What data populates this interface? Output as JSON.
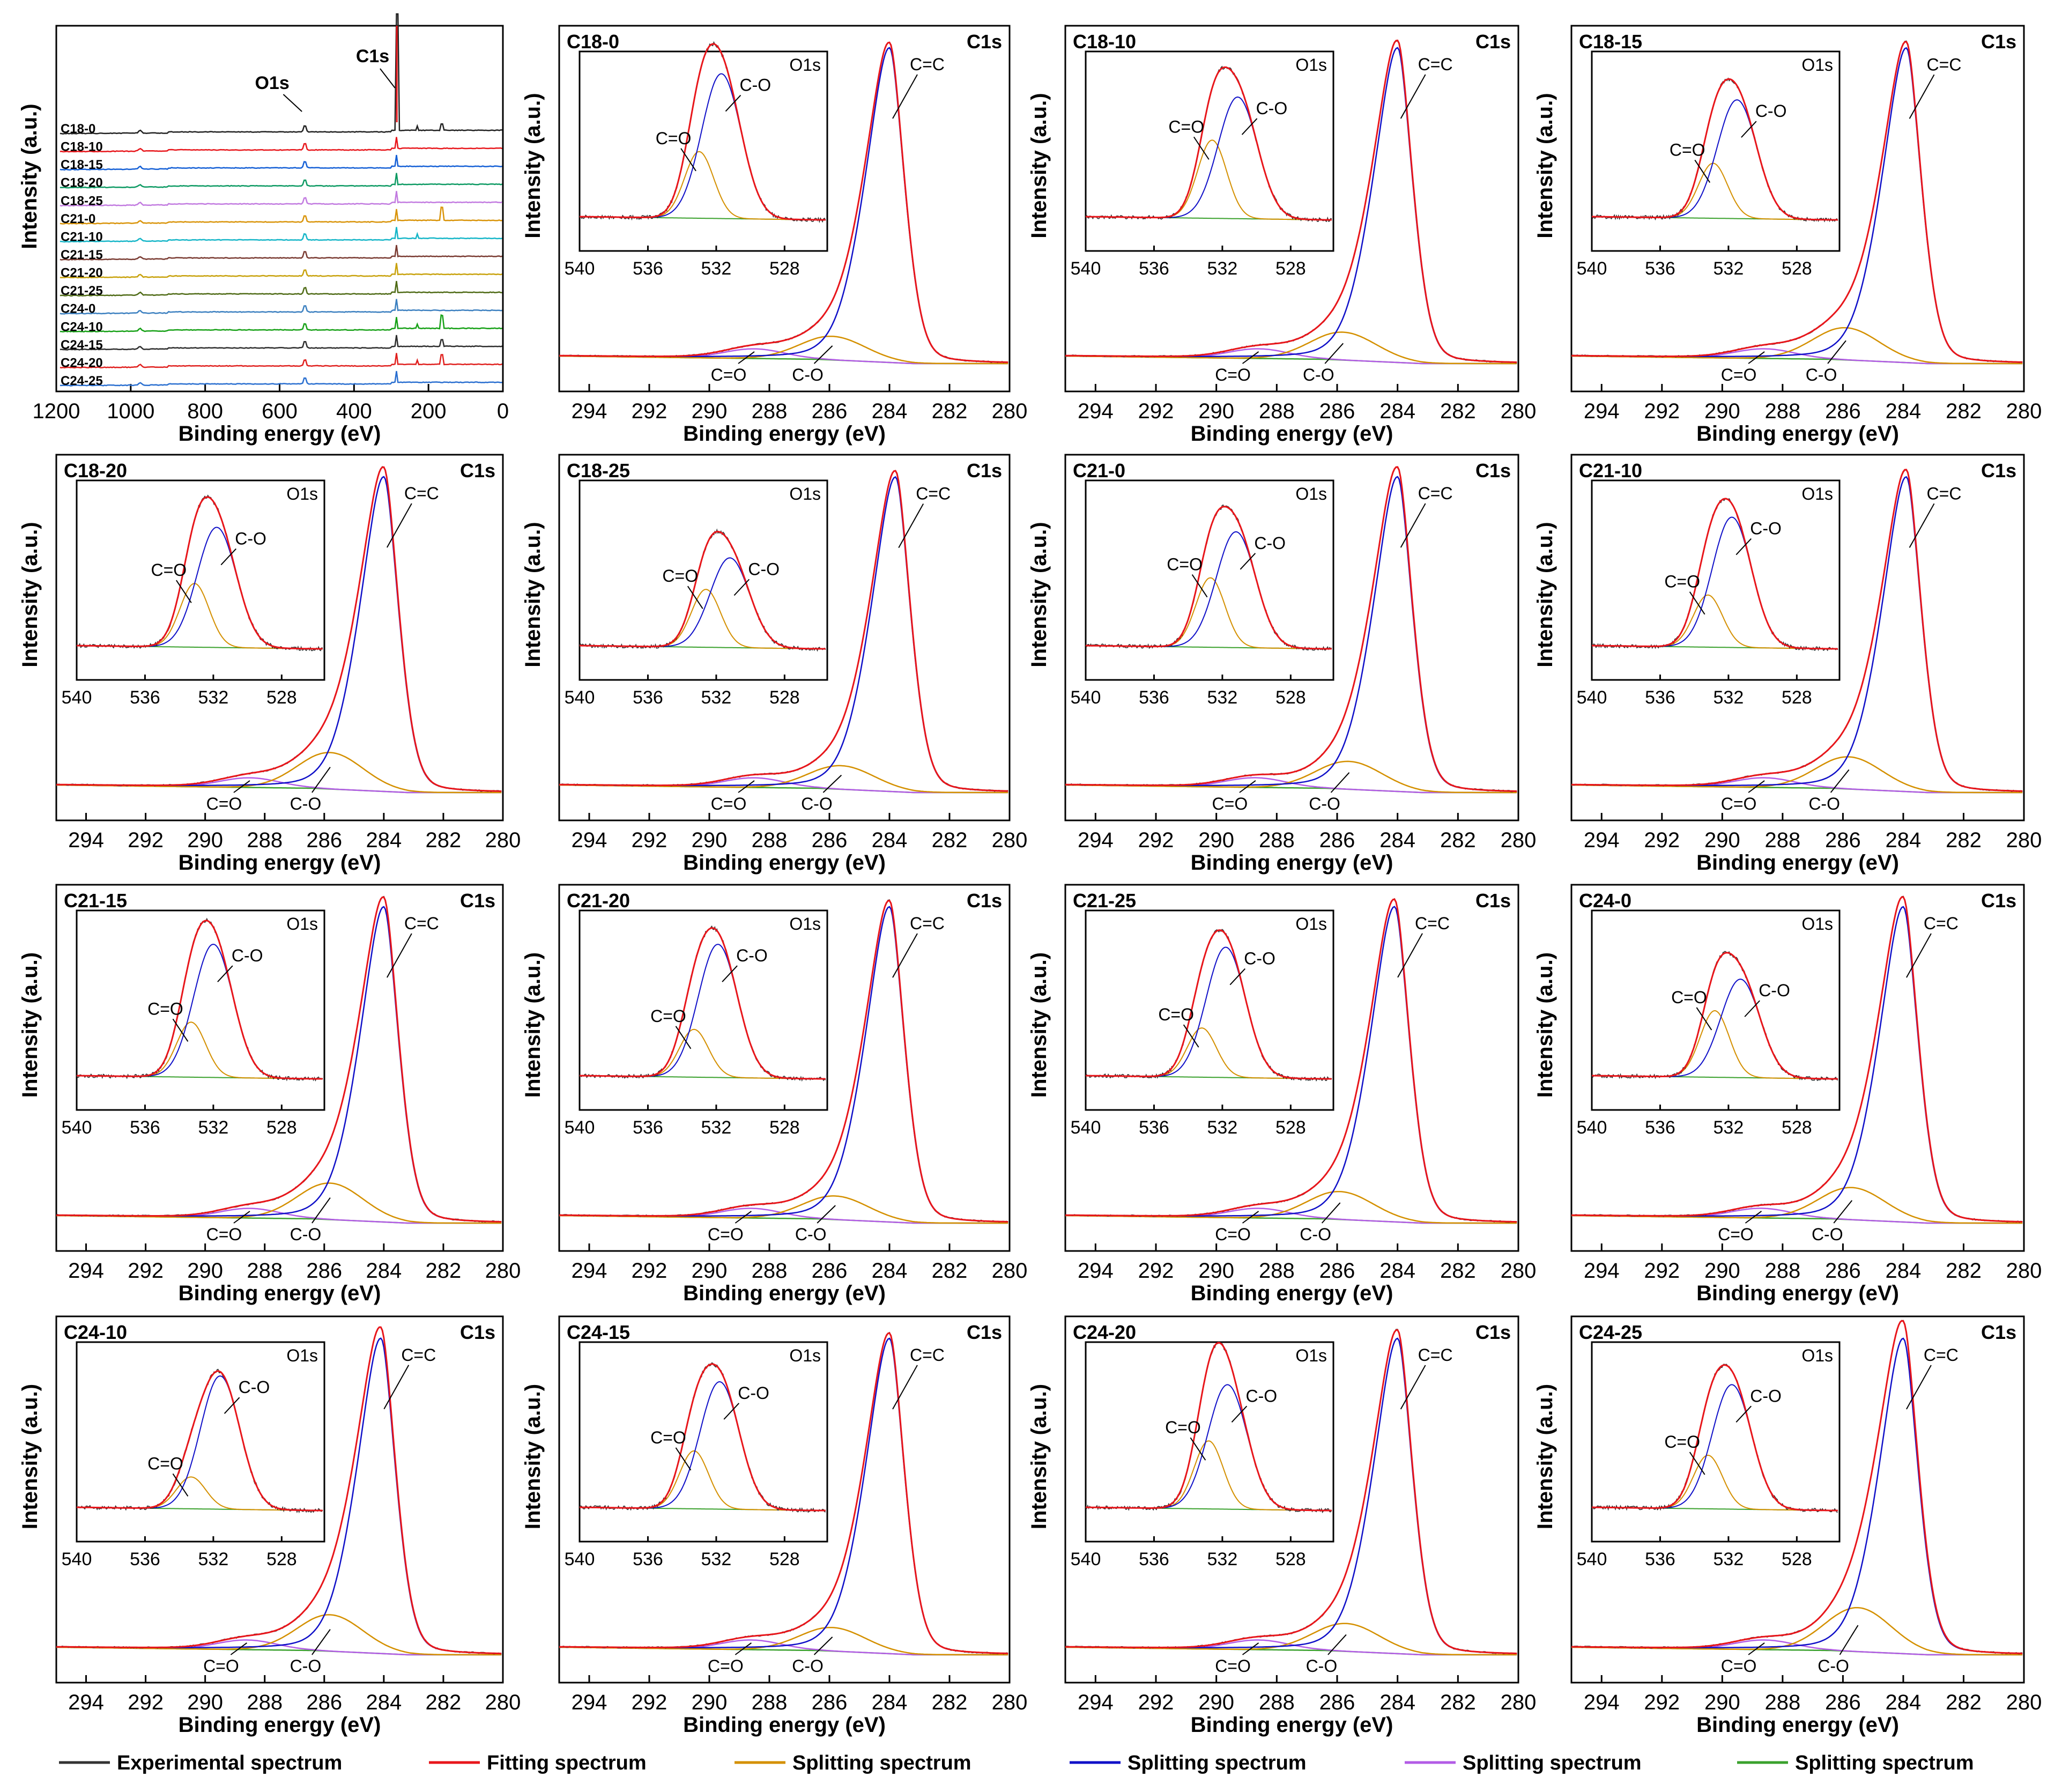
{
  "chart_data": {
    "type": "line",
    "figure": "XPS survey spectra and high-resolution C1s / O1s spectra",
    "survey": {
      "xlabel": "Binding energy (eV)",
      "ylabel": "Intensity (a.u.)",
      "xlim": [
        1200,
        0
      ],
      "xticks": [
        1200,
        1000,
        800,
        600,
        400,
        200,
        0
      ],
      "annotations": [
        "O1s",
        "C1s"
      ],
      "samples": [
        "C18-0",
        "C18-10",
        "C18-15",
        "C18-20",
        "C18-25",
        "C21-0",
        "C21-10",
        "C21-15",
        "C21-20",
        "C21-25",
        "C24-0",
        "C24-10",
        "C24-15",
        "C24-20",
        "C24-25"
      ],
      "sample_colors": [
        "#222222",
        "#e8161b",
        "#1560d6",
        "#0d9a63",
        "#c27be0",
        "#d9940a",
        "#16b6c8",
        "#7a3b32",
        "#c8a20c",
        "#4f6b16",
        "#3c80c0",
        "#17a117",
        "#2e2e2e",
        "#e0201e",
        "#2a6fd0"
      ]
    },
    "c1s_panels": {
      "xlabel": "Binding energy (eV)",
      "ylabel": "Intensity (a.u.)",
      "xlim": [
        295,
        280
      ],
      "xticks": [
        294,
        292,
        290,
        288,
        286,
        284,
        282,
        280
      ],
      "region_label": "C1s",
      "peaks": [
        {
          "name": "C=C",
          "position_ev": 284.0
        },
        {
          "name": "C-O",
          "position_ev": 285.8
        },
        {
          "name": "C=O",
          "position_ev": 288.6
        }
      ],
      "inset": {
        "region_label": "O1s",
        "xlim": [
          540,
          525.5
        ],
        "xticks": [
          540,
          536,
          532,
          528
        ],
        "peaks": [
          {
            "name": "C=O",
            "position_ev": 533.2
          },
          {
            "name": "C-O",
            "position_ev": 531.6
          }
        ]
      },
      "samples": [
        {
          "name": "C18-0",
          "c1s_cc": 284.0,
          "c1s_co": 285.9,
          "c1s_cdo": 288.5,
          "o1s_co": 531.7,
          "o1s_cdo": 533.0,
          "o1s_co_rel": 1.0,
          "o1s_cdo_rel": 0.46
        },
        {
          "name": "C18-10",
          "c1s_cc": 284.0,
          "c1s_co": 285.8,
          "c1s_cdo": 288.6,
          "o1s_co": 531.1,
          "o1s_cdo": 532.6,
          "o1s_co_rel": 0.84,
          "o1s_cdo_rel": 0.54
        },
        {
          "name": "C18-15",
          "c1s_cc": 283.9,
          "c1s_co": 285.9,
          "c1s_cdo": 288.6,
          "o1s_co": 531.5,
          "o1s_cdo": 532.9,
          "o1s_co_rel": 0.82,
          "o1s_cdo_rel": 0.38
        },
        {
          "name": "C18-20",
          "c1s_cc": 284.0,
          "c1s_co": 285.8,
          "c1s_cdo": 288.5,
          "o1s_co": 531.8,
          "o1s_cdo": 533.1,
          "o1s_co_rel": 0.83,
          "o1s_cdo_rel": 0.44
        },
        {
          "name": "C18-25",
          "c1s_cc": 283.8,
          "c1s_co": 285.6,
          "c1s_cdo": 288.5,
          "o1s_co": 531.2,
          "o1s_cdo": 532.6,
          "o1s_co_rel": 0.62,
          "o1s_cdo_rel": 0.4
        },
        {
          "name": "C21-0",
          "c1s_cc": 284.0,
          "c1s_co": 285.6,
          "c1s_cdo": 288.7,
          "o1s_co": 531.2,
          "o1s_cdo": 532.7,
          "o1s_co_rel": 0.8,
          "o1s_cdo_rel": 0.48
        },
        {
          "name": "C21-10",
          "c1s_cc": 283.9,
          "c1s_co": 285.8,
          "c1s_cdo": 288.6,
          "o1s_co": 531.8,
          "o1s_cdo": 533.2,
          "o1s_co_rel": 0.9,
          "o1s_cdo_rel": 0.36
        },
        {
          "name": "C21-15",
          "c1s_cc": 284.0,
          "c1s_co": 285.8,
          "c1s_cdo": 288.5,
          "o1s_co": 532.0,
          "o1s_cdo": 533.3,
          "o1s_co_rel": 0.92,
          "o1s_cdo_rel": 0.38
        },
        {
          "name": "C21-20",
          "c1s_cc": 284.0,
          "c1s_co": 285.8,
          "c1s_cdo": 288.6,
          "o1s_co": 531.9,
          "o1s_cdo": 533.3,
          "o1s_co_rel": 0.92,
          "o1s_cdo_rel": 0.33
        },
        {
          "name": "C21-25",
          "c1s_cc": 284.1,
          "c1s_co": 285.9,
          "c1s_cdo": 288.6,
          "o1s_co": 531.8,
          "o1s_cdo": 533.2,
          "o1s_co_rel": 0.9,
          "o1s_cdo_rel": 0.34
        },
        {
          "name": "C24-0",
          "c1s_cc": 284.0,
          "c1s_co": 285.7,
          "c1s_cdo": 288.7,
          "o1s_co": 531.3,
          "o1s_cdo": 532.8,
          "o1s_co_rel": 0.68,
          "o1s_cdo_rel": 0.46
        },
        {
          "name": "C24-10",
          "c1s_cc": 284.1,
          "c1s_co": 285.8,
          "c1s_cdo": 288.6,
          "o1s_co": 531.6,
          "o1s_cdo": 533.3,
          "o1s_co_rel": 0.92,
          "o1s_cdo_rel": 0.22
        },
        {
          "name": "C24-15",
          "c1s_cc": 284.0,
          "c1s_co": 285.9,
          "c1s_cdo": 288.6,
          "o1s_co": 531.8,
          "o1s_cdo": 533.3,
          "o1s_co_rel": 0.88,
          "o1s_cdo_rel": 0.4
        },
        {
          "name": "C24-20",
          "c1s_cc": 284.0,
          "c1s_co": 285.7,
          "c1s_cdo": 288.6,
          "o1s_co": 531.7,
          "o1s_cdo": 532.8,
          "o1s_co_rel": 0.86,
          "o1s_cdo_rel": 0.47
        },
        {
          "name": "C24-25",
          "c1s_cc": 284.0,
          "c1s_co": 285.5,
          "c1s_cdo": 288.6,
          "o1s_co": 531.8,
          "o1s_cdo": 533.2,
          "o1s_co_rel": 0.86,
          "o1s_cdo_rel": 0.37
        }
      ]
    },
    "legend": [
      {
        "label": "Experimental spectrum",
        "color": "#333333"
      },
      {
        "label": "Fitting spectrum",
        "color": "#e8161b"
      },
      {
        "label": "Splitting spectrum",
        "color": "#d49000"
      },
      {
        "label": "Splitting spectrum",
        "color": "#1010c8"
      },
      {
        "label": "Splitting spectrum",
        "color": "#b35ce6"
      },
      {
        "label": "Splitting spectrum",
        "color": "#3aa12d"
      }
    ],
    "series_colors": {
      "experimental": "#333333",
      "fitting": "#e8161b",
      "component_co": "#d49000",
      "component_cc": "#1010c8",
      "component_cdo": "#b35ce6",
      "background": "#3aa12d"
    }
  }
}
